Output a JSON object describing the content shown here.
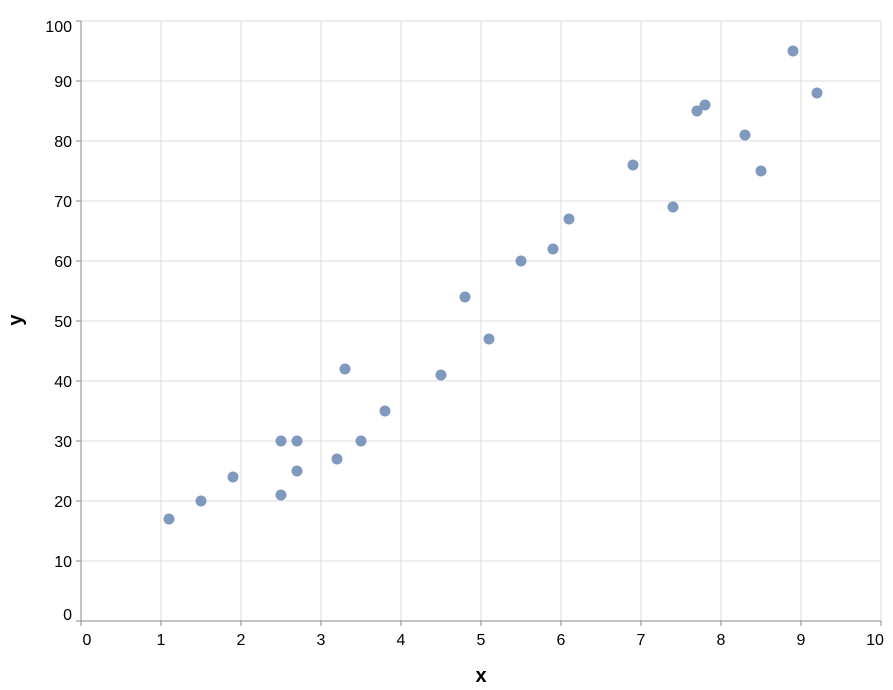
{
  "chart_data": {
    "type": "scatter",
    "title": "",
    "xlabel": "x",
    "ylabel": "y",
    "xlim": [
      0,
      10
    ],
    "ylim": [
      0,
      100
    ],
    "x_ticks": [
      0,
      1,
      2,
      3,
      4,
      5,
      6,
      7,
      8,
      9,
      10
    ],
    "y_ticks": [
      0,
      10,
      20,
      30,
      40,
      50,
      60,
      70,
      80,
      90,
      100
    ],
    "grid": true,
    "point_color": "#7f98bd",
    "points": [
      {
        "x": 1.1,
        "y": 17
      },
      {
        "x": 1.5,
        "y": 20
      },
      {
        "x": 1.9,
        "y": 24
      },
      {
        "x": 2.5,
        "y": 30
      },
      {
        "x": 2.5,
        "y": 21
      },
      {
        "x": 2.7,
        "y": 30
      },
      {
        "x": 2.7,
        "y": 25
      },
      {
        "x": 3.2,
        "y": 27
      },
      {
        "x": 3.3,
        "y": 42
      },
      {
        "x": 3.5,
        "y": 30
      },
      {
        "x": 3.8,
        "y": 35
      },
      {
        "x": 4.5,
        "y": 41
      },
      {
        "x": 4.8,
        "y": 54
      },
      {
        "x": 5.1,
        "y": 47
      },
      {
        "x": 5.5,
        "y": 60
      },
      {
        "x": 5.9,
        "y": 62
      },
      {
        "x": 6.1,
        "y": 67
      },
      {
        "x": 6.9,
        "y": 76
      },
      {
        "x": 7.4,
        "y": 69
      },
      {
        "x": 7.7,
        "y": 85
      },
      {
        "x": 7.8,
        "y": 86
      },
      {
        "x": 8.3,
        "y": 81
      },
      {
        "x": 8.5,
        "y": 75
      },
      {
        "x": 8.9,
        "y": 95
      },
      {
        "x": 9.2,
        "y": 88
      }
    ]
  }
}
